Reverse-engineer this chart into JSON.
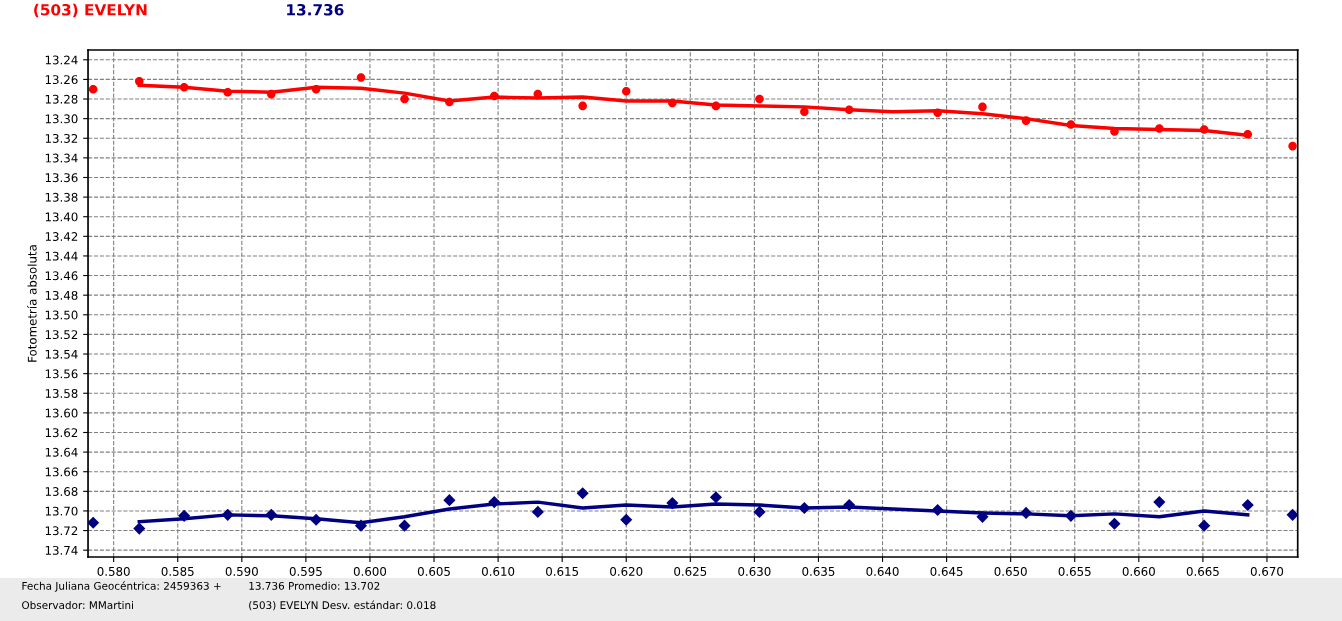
{
  "chart_data": {
    "type": "scatter",
    "ylabel": "Fotometría absoluta",
    "annotations": [
      "Fecha Juliana Geocéntrica: 2459363 +",
      "Observador: MMartini",
      "13.736 Promedio: 13.702",
      "(503) EVELYN Desv. estándar: 0.018"
    ],
    "xlim": [
      0.578,
      0.6724
    ],
    "ylim": [
      13.747,
      13.23
    ],
    "xticks": [
      {
        "value": 0.58,
        "label": "0.580"
      },
      0.585,
      {
        "value": 0.59,
        "label": "0.590"
      },
      0.595,
      {
        "value": 0.6,
        "label": "0.600"
      },
      0.605,
      {
        "value": 0.61,
        "label": "0.610"
      },
      0.615,
      {
        "value": 0.62,
        "label": "0.620"
      },
      0.625,
      {
        "value": 0.63,
        "label": "0.630"
      },
      0.635,
      {
        "value": 0.64,
        "label": "0.640"
      },
      0.645,
      {
        "value": 0.65,
        "label": "0.650"
      },
      0.655,
      {
        "value": 0.66,
        "label": "0.660"
      },
      0.665,
      {
        "value": 0.67,
        "label": "0.670"
      }
    ],
    "yticks": [
      13.24,
      13.26,
      13.28,
      {
        "value": 13.3,
        "label": "13.30"
      },
      13.32,
      13.34,
      13.36,
      13.38,
      {
        "value": 13.4,
        "label": "13.40"
      },
      13.42,
      13.44,
      13.46,
      13.48,
      {
        "value": 13.5,
        "label": "13.50"
      },
      13.52,
      13.54,
      13.56,
      13.58,
      {
        "value": 13.6,
        "label": "13.60"
      },
      13.62,
      13.64,
      13.66,
      13.68,
      {
        "value": 13.7,
        "label": "13.70"
      },
      13.72,
      13.74
    ],
    "grid": true,
    "legend": "top left",
    "series": [
      {
        "name": "(503) EVELYN",
        "marker": "circle",
        "color": "#ff0000",
        "x": [
          0.5784,
          0.582,
          0.5855,
          0.5889,
          0.5923,
          0.5958,
          0.5993,
          0.6027,
          0.6062,
          0.6097,
          0.6131,
          0.6166,
          0.62,
          0.6236,
          0.627,
          0.6304,
          0.6339,
          0.6374,
          0.6443,
          0.6478,
          0.6512,
          0.6547,
          0.6581,
          0.6616,
          0.6651,
          0.6685,
          0.672
        ],
        "values": [
          13.27,
          13.262,
          13.268,
          13.273,
          13.275,
          13.27,
          13.258,
          13.28,
          13.283,
          13.277,
          13.275,
          13.287,
          13.272,
          13.284,
          13.287,
          13.28,
          13.293,
          13.291,
          13.294,
          13.288,
          13.302,
          13.306,
          13.313,
          13.31,
          13.311,
          13.316,
          13.328
        ]
      },
      {
        "type": "line",
        "color": "#ff0000",
        "x": [
          0.582,
          0.5855,
          0.5889,
          0.5923,
          0.5958,
          0.5993,
          0.6027,
          0.6062,
          0.6097,
          0.6131,
          0.6166,
          0.62,
          0.6236,
          0.627,
          0.6304,
          0.6339,
          0.6374,
          0.6408,
          0.6443,
          0.6478,
          0.6512,
          0.6547,
          0.6581,
          0.6616,
          0.6651,
          0.6685
        ],
        "values": [
          13.266,
          13.268,
          13.272,
          13.273,
          13.268,
          13.269,
          13.274,
          13.282,
          13.278,
          13.279,
          13.278,
          13.282,
          13.282,
          13.286,
          13.287,
          13.288,
          13.291,
          13.293,
          13.292,
          13.295,
          13.3,
          13.307,
          13.31,
          13.311,
          13.312,
          13.317
        ]
      },
      {
        "name": "13.736",
        "marker": "diamond",
        "color": "#000080",
        "x": [
          0.5784,
          0.582,
          0.5855,
          0.5889,
          0.5923,
          0.5958,
          0.5993,
          0.6027,
          0.6062,
          0.6097,
          0.6131,
          0.6166,
          0.62,
          0.6236,
          0.627,
          0.6304,
          0.6339,
          0.6374,
          0.6443,
          0.6478,
          0.6512,
          0.6547,
          0.6581,
          0.6616,
          0.6651,
          0.6685,
          0.672
        ],
        "values": [
          13.712,
          13.718,
          13.705,
          13.704,
          13.704,
          13.709,
          13.715,
          13.715,
          13.689,
          13.691,
          13.701,
          13.682,
          13.709,
          13.692,
          13.686,
          13.701,
          13.697,
          13.694,
          13.699,
          13.706,
          13.702,
          13.705,
          13.713,
          13.691,
          13.715,
          13.694,
          13.704
        ]
      },
      {
        "type": "line",
        "color": "#000080",
        "x": [
          0.582,
          0.5855,
          0.5889,
          0.5923,
          0.5958,
          0.5993,
          0.6027,
          0.6062,
          0.6097,
          0.6131,
          0.6166,
          0.62,
          0.6236,
          0.627,
          0.6304,
          0.6339,
          0.6374,
          0.6408,
          0.6443,
          0.6478,
          0.6512,
          0.6547,
          0.6581,
          0.6616,
          0.6651,
          0.6685
        ],
        "values": [
          13.711,
          13.708,
          13.704,
          13.705,
          13.708,
          13.712,
          13.706,
          13.698,
          13.693,
          13.691,
          13.697,
          13.694,
          13.696,
          13.693,
          13.694,
          13.697,
          13.696,
          13.698,
          13.7,
          13.702,
          13.703,
          13.705,
          13.703,
          13.706,
          13.7,
          13.704
        ]
      }
    ]
  }
}
